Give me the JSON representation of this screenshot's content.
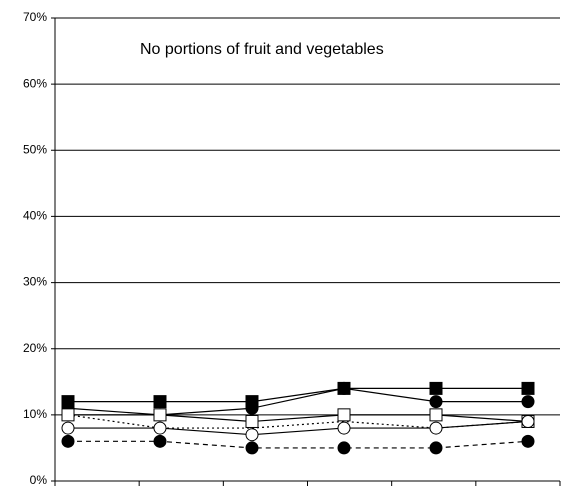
{
  "chart_data": {
    "type": "line",
    "annotation": "No portions of fruit and vegetables",
    "categories": [
      null,
      null,
      null,
      null,
      null,
      null
    ],
    "ylim": [
      0,
      70
    ],
    "yticks": [
      {
        "value": 0,
        "label": "0%"
      },
      {
        "value": 10,
        "label": "10%"
      },
      {
        "value": 20,
        "label": "20%"
      },
      {
        "value": 30,
        "label": "30%"
      },
      {
        "value": 40,
        "label": "40%"
      },
      {
        "value": 50,
        "label": "50%"
      },
      {
        "value": 60,
        "label": "60%"
      },
      {
        "value": 70,
        "label": "70%"
      }
    ],
    "grid": true,
    "series": [
      {
        "color": "#000000",
        "marker": "square",
        "marker_fill": "#000000",
        "dash": "solid",
        "values": [
          12,
          12,
          12,
          14,
          14,
          14
        ]
      },
      {
        "color": "#000000",
        "marker": "circle",
        "marker_fill": "#000000",
        "dash": "solid",
        "values": [
          11,
          10,
          11,
          14,
          12,
          12
        ]
      },
      {
        "color": "#000000",
        "marker": "square",
        "marker_fill": "#ffffff",
        "dash": "solid",
        "values": [
          10,
          10,
          9,
          10,
          10,
          9
        ]
      },
      {
        "color": "#000000",
        "marker": "circle",
        "marker_fill": "#ffffff",
        "dash": "solid",
        "values": [
          8,
          8,
          7,
          8,
          8,
          9
        ]
      },
      {
        "color": "#000000",
        "marker": "none",
        "marker_fill": "#ffffff",
        "dash": "dotted",
        "values": [
          10,
          8,
          8,
          9,
          8,
          9
        ]
      },
      {
        "color": "#000000",
        "marker": "circle",
        "marker_fill": "#000000",
        "dash": "dashed",
        "values": [
          6,
          6,
          5,
          5,
          5,
          6
        ]
      }
    ]
  }
}
